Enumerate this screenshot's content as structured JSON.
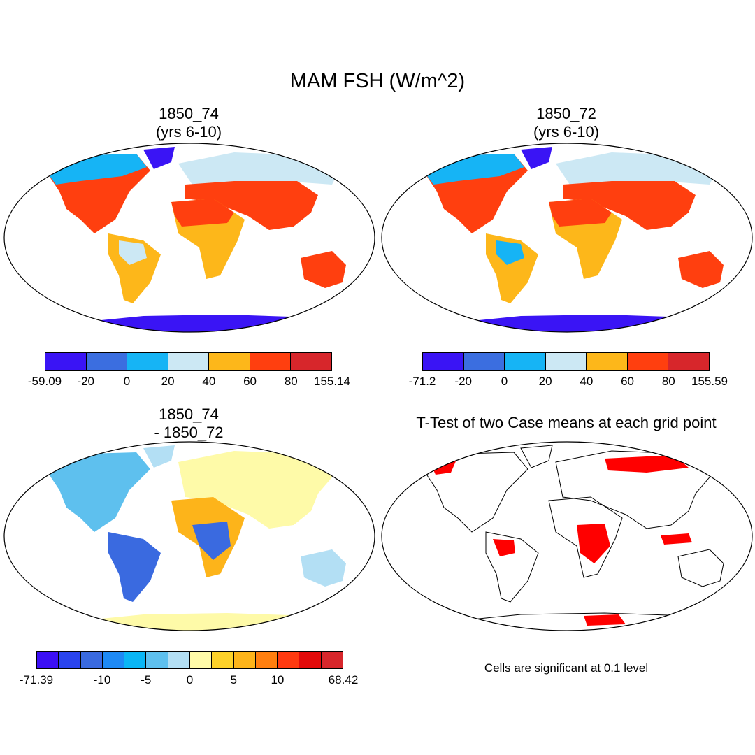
{
  "title": "MAM FSH (W/m^2)",
  "panels": {
    "p1": {
      "title_line1": "1850_74",
      "title_line2": "(yrs 6-10)"
    },
    "p2": {
      "title_line1": "1850_72",
      "title_line2": "(yrs 6-10)"
    },
    "p3": {
      "title_line1": "1850_74",
      "title_line2": "- 1850_72"
    },
    "p4": {
      "title": "T-Test of two Case means at each grid point"
    }
  },
  "colorbars": {
    "p1": {
      "colors": [
        "#3a14f5",
        "#3b6ee0",
        "#16b4f5",
        "#cce8f4",
        "#fdb71a",
        "#ff3f0f",
        "#d7262b"
      ],
      "labels": [
        "-59.09",
        "-20",
        "0",
        "20",
        "40",
        "60",
        "80",
        "155.14"
      ]
    },
    "p2": {
      "colors": [
        "#3a14f5",
        "#3b6ee0",
        "#16b4f5",
        "#cce8f4",
        "#fdb71a",
        "#ff3f0f",
        "#d7262b"
      ],
      "labels": [
        "-71.2",
        "-20",
        "0",
        "20",
        "40",
        "60",
        "80",
        "155.59"
      ]
    },
    "p3": {
      "colors": [
        "#3b0ff5",
        "#2a44ee",
        "#3a6ae0",
        "#1e8af5",
        "#0ab6f5",
        "#5ec0ee",
        "#b3dff4",
        "#fefaa8",
        "#fdd22a",
        "#fdb41a",
        "#ff7f0f",
        "#ff3a10",
        "#e30a0a",
        "#d7262b"
      ],
      "labels": [
        "-71.39",
        "-10",
        "-5",
        "0",
        "5",
        "10",
        "68.42"
      ]
    }
  },
  "significance_note": "Cells are significant at 0.1 level",
  "legend_colors": {
    "significant": "#ff0000"
  }
}
